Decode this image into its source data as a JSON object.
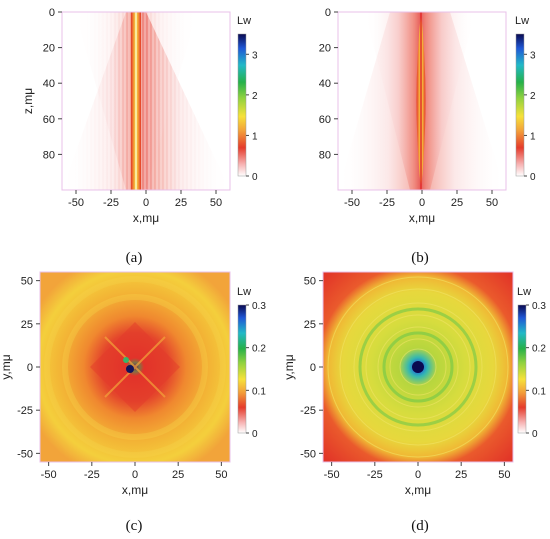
{
  "chart_data": [
    {
      "type": "heatmap",
      "panel_label": "(a)",
      "xlabel": "x,mμ",
      "ylabel": "z,mμ",
      "xlim": [
        -60,
        60
      ],
      "ylim": [
        0,
        100
      ],
      "y_inverted": true,
      "x_ticks": [
        -50,
        -25,
        0,
        25,
        50
      ],
      "y_ticks": [
        0,
        20,
        40,
        60,
        80
      ],
      "colorbar": {
        "title": "Lw",
        "range": [
          0,
          3.5
        ],
        "ticks": [
          0,
          1,
          2,
          3
        ]
      },
      "pattern": "narrow beam along x=0 with diverging red cone and fine vertical stripes"
    },
    {
      "type": "heatmap",
      "panel_label": "(b)",
      "xlabel": "x,mμ",
      "ylabel": "",
      "xlim": [
        -60,
        60
      ],
      "ylim": [
        0,
        100
      ],
      "y_inverted": true,
      "x_ticks": [
        -50,
        -25,
        0,
        25,
        50
      ],
      "y_ticks": [
        0,
        20,
        40,
        60,
        80
      ],
      "colorbar": {
        "title": "Lw",
        "range": [
          0,
          3.5
        ],
        "ticks": [
          0,
          1,
          2,
          3
        ]
      },
      "pattern": "narrow beam along x=0 with smooth diverging red cone"
    },
    {
      "type": "heatmap",
      "panel_label": "(c)",
      "xlabel": "x,mμ",
      "ylabel": "y,mμ",
      "xlim": [
        -55,
        55
      ],
      "ylim": [
        -55,
        55
      ],
      "x_ticks": [
        -50,
        -25,
        0,
        25,
        50
      ],
      "y_ticks": [
        -50,
        -25,
        0,
        25,
        50
      ],
      "colorbar": {
        "title": "Lw",
        "range": [
          0,
          0.3
        ],
        "ticks": [
          0,
          0.1,
          0.2,
          0.3
        ]
      },
      "pattern": "peak at center, red diamond ring, yellow-orange periphery"
    },
    {
      "type": "heatmap",
      "panel_label": "(d)",
      "xlabel": "x,mμ",
      "ylabel": "y,mμ",
      "xlim": [
        -55,
        55
      ],
      "ylim": [
        -55,
        55
      ],
      "x_ticks": [
        -50,
        -25,
        0,
        25,
        50
      ],
      "y_ticks": [
        -50,
        -25,
        0,
        25,
        50
      ],
      "colorbar": {
        "title": "Lw",
        "range": [
          0,
          0.3
        ],
        "ticks": [
          0,
          0.1,
          0.2,
          0.3
        ]
      },
      "pattern": "peak at center, green-yellow disk with concentric rings, red corners"
    }
  ]
}
